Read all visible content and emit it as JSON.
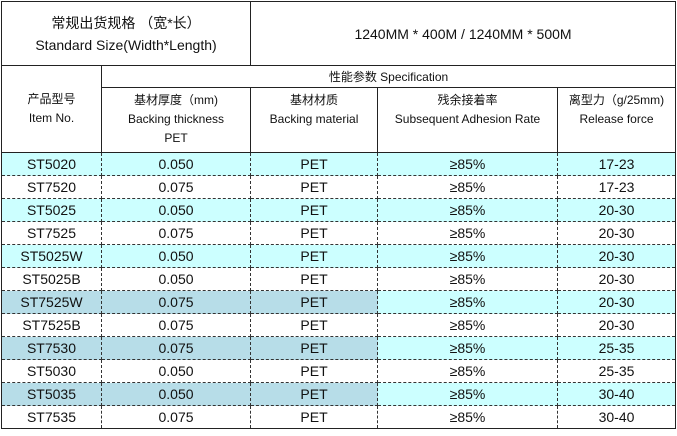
{
  "header": {
    "size_label_cn": "常规出货规格 （宽*长）",
    "size_label_en": "Standard Size(Width*Length)",
    "size_value": "1240MM * 400M / 1240MM * 500M",
    "item_cn": "产品型号",
    "item_en": "Item No.",
    "spec": "性能参数 Specification",
    "columns": [
      {
        "cn": "基材厚度（mm)",
        "en": "Backing thickness",
        "en2": "PET"
      },
      {
        "cn": "基材材质",
        "en": "Backing material"
      },
      {
        "cn": "残余接着率",
        "en": "Subsequent Adhesion Rate"
      },
      {
        "cn": "离型力（g/25mm)",
        "en": "Release force"
      }
    ]
  },
  "colors": {
    "cyan": "#ccffff",
    "blue_gray": "#b7dde8"
  },
  "rows": [
    [
      "ST5020",
      "0.050",
      "PET",
      "≥85%",
      "17-23"
    ],
    [
      "ST7520",
      "0.075",
      "PET",
      "≥85%",
      "17-23"
    ],
    [
      "ST5025",
      "0.050",
      "PET",
      "≥85%",
      "20-30"
    ],
    [
      "ST7525",
      "0.075",
      "PET",
      "≥85%",
      "20-30"
    ],
    [
      "ST5025W",
      "0.050",
      "PET",
      "≥85%",
      "20-30"
    ],
    [
      "ST5025B",
      "0.050",
      "PET",
      "≥85%",
      "20-30"
    ],
    [
      "ST7525W",
      "0.075",
      "PET",
      "≥85%",
      "20-30"
    ],
    [
      "ST7525B",
      "0.075",
      "PET",
      "≥85%",
      "20-30"
    ],
    [
      "ST7530",
      "0.075",
      "PET",
      "≥85%",
      "25-35"
    ],
    [
      "ST5030",
      "0.050",
      "PET",
      "≥85%",
      "25-35"
    ],
    [
      "ST5035",
      "0.050",
      "PET",
      "≥85%",
      "30-40"
    ],
    [
      "ST7535",
      "0.075",
      "PET",
      "≥85%",
      "30-40"
    ]
  ]
}
